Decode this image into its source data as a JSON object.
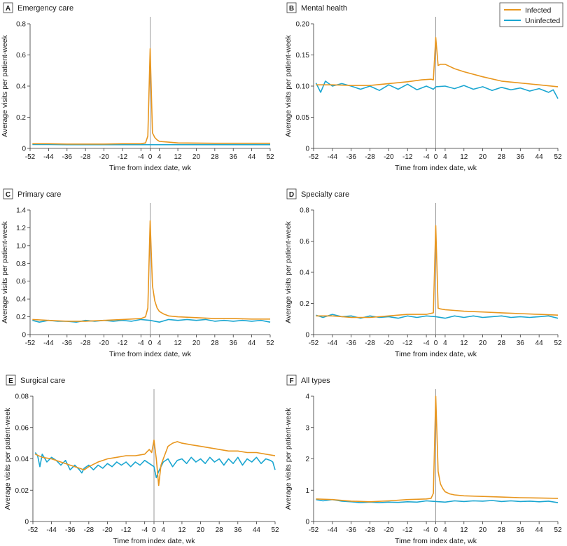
{
  "legend": {
    "infected_label": "Infected",
    "uninfected_label": "Uninfected",
    "position": "top-right of panel B"
  },
  "colors": {
    "infected": "#E8961E",
    "uninfected": "#1AA6D1",
    "index_line": "#9a9a9a",
    "axis": "#333333"
  },
  "chart_data": [
    {
      "type": "line",
      "panel_letter": "A",
      "title": "Emergency care",
      "xlabel": "Time from index date, wk",
      "ylabel": "Average visits per patient-week",
      "xlim": [
        -52,
        52
      ],
      "ylim": [
        0,
        0.8
      ],
      "xticks": [
        -52,
        -44,
        -36,
        -28,
        -20,
        -12,
        -4,
        0,
        4,
        12,
        20,
        28,
        36,
        44,
        52
      ],
      "yticks": [
        "0",
        "0.2",
        "0.4",
        "0.6",
        "0.8"
      ],
      "series": [
        {
          "name": "Infected",
          "x": [
            -51,
            -44,
            -36,
            -28,
            -20,
            -12,
            -4,
            -2,
            -1,
            0,
            1,
            2,
            3,
            4,
            8,
            12,
            20,
            28,
            36,
            44,
            52
          ],
          "y": [
            0.03,
            0.03,
            0.028,
            0.028,
            0.028,
            0.03,
            0.03,
            0.035,
            0.08,
            0.64,
            0.1,
            0.07,
            0.055,
            0.045,
            0.04,
            0.035,
            0.034,
            0.033,
            0.033,
            0.033,
            0.033
          ]
        },
        {
          "name": "Uninfected",
          "x": [
            -51,
            -44,
            -36,
            -28,
            -20,
            -12,
            -4,
            0,
            4,
            12,
            20,
            28,
            36,
            44,
            52
          ],
          "y": [
            0.025,
            0.025,
            0.024,
            0.024,
            0.024,
            0.024,
            0.024,
            0.024,
            0.024,
            0.024,
            0.024,
            0.024,
            0.024,
            0.024,
            0.024
          ]
        }
      ]
    },
    {
      "type": "line",
      "panel_letter": "B",
      "title": "Mental health",
      "xlabel": "Time from index date, wk",
      "ylabel": "Average visits per patient-week",
      "xlim": [
        -52,
        52
      ],
      "ylim": [
        0,
        0.2
      ],
      "xticks": [
        -52,
        -44,
        -36,
        -28,
        -20,
        -12,
        -4,
        0,
        4,
        12,
        20,
        28,
        36,
        44,
        52
      ],
      "yticks": [
        "0",
        "0.05",
        "0.10",
        "0.15",
        "0.20"
      ],
      "series": [
        {
          "name": "Infected",
          "x": [
            -51,
            -44,
            -36,
            -28,
            -20,
            -12,
            -6,
            -2,
            -1,
            0,
            1,
            2,
            4,
            8,
            12,
            20,
            28,
            36,
            44,
            52
          ],
          "y": [
            0.102,
            0.102,
            0.101,
            0.101,
            0.104,
            0.107,
            0.11,
            0.111,
            0.11,
            0.178,
            0.133,
            0.135,
            0.135,
            0.128,
            0.123,
            0.115,
            0.108,
            0.105,
            0.102,
            0.099
          ]
        },
        {
          "name": "Uninfected",
          "x": [
            -51,
            -49,
            -47,
            -44,
            -40,
            -36,
            -32,
            -28,
            -24,
            -20,
            -16,
            -12,
            -8,
            -4,
            -1,
            0,
            4,
            8,
            12,
            16,
            20,
            24,
            28,
            32,
            36,
            40,
            44,
            48,
            50,
            52
          ],
          "y": [
            0.105,
            0.09,
            0.108,
            0.1,
            0.104,
            0.1,
            0.095,
            0.1,
            0.093,
            0.102,
            0.095,
            0.103,
            0.094,
            0.1,
            0.095,
            0.099,
            0.1,
            0.096,
            0.101,
            0.095,
            0.099,
            0.093,
            0.098,
            0.094,
            0.097,
            0.092,
            0.096,
            0.09,
            0.094,
            0.08
          ]
        }
      ]
    },
    {
      "type": "line",
      "panel_letter": "C",
      "title": "Primary care",
      "xlabel": "Time from index date, wk",
      "ylabel": "Average visits per patient-week",
      "xlim": [
        -52,
        52
      ],
      "ylim": [
        0,
        1.4
      ],
      "xticks": [
        -52,
        -44,
        -36,
        -28,
        -20,
        -12,
        -4,
        0,
        4,
        12,
        20,
        28,
        36,
        44,
        52
      ],
      "yticks": [
        "0",
        "0.2",
        "0.4",
        "0.6",
        "0.8",
        "1.0",
        "1.2",
        "1.4"
      ],
      "series": [
        {
          "name": "Infected",
          "x": [
            -51,
            -44,
            -36,
            -28,
            -20,
            -12,
            -4,
            -2,
            -1,
            0,
            1,
            2,
            3,
            4,
            6,
            8,
            12,
            20,
            28,
            36,
            44,
            52
          ],
          "y": [
            0.17,
            0.16,
            0.15,
            0.15,
            0.16,
            0.17,
            0.18,
            0.2,
            0.3,
            1.28,
            0.55,
            0.38,
            0.3,
            0.26,
            0.23,
            0.21,
            0.2,
            0.19,
            0.18,
            0.18,
            0.175,
            0.175
          ]
        },
        {
          "name": "Uninfected",
          "x": [
            -51,
            -48,
            -44,
            -40,
            -36,
            -32,
            -28,
            -24,
            -20,
            -16,
            -12,
            -8,
            -4,
            0,
            4,
            8,
            12,
            16,
            20,
            24,
            28,
            32,
            36,
            40,
            44,
            48,
            52
          ],
          "y": [
            0.16,
            0.14,
            0.16,
            0.15,
            0.15,
            0.14,
            0.16,
            0.15,
            0.16,
            0.15,
            0.16,
            0.15,
            0.17,
            0.16,
            0.14,
            0.17,
            0.16,
            0.17,
            0.16,
            0.17,
            0.15,
            0.16,
            0.15,
            0.16,
            0.15,
            0.16,
            0.14
          ]
        }
      ]
    },
    {
      "type": "line",
      "panel_letter": "D",
      "title": "Specialty care",
      "xlabel": "Time from index date, wk",
      "ylabel": "Average visits per patient-week",
      "xlim": [
        -52,
        52
      ],
      "ylim": [
        0,
        0.8
      ],
      "xticks": [
        -52,
        -44,
        -36,
        -28,
        -20,
        -12,
        -4,
        0,
        4,
        12,
        20,
        28,
        36,
        44,
        52
      ],
      "yticks": [
        "0",
        "0.2",
        "0.4",
        "0.6",
        "0.8"
      ],
      "series": [
        {
          "name": "Infected",
          "x": [
            -51,
            -44,
            -36,
            -28,
            -20,
            -12,
            -4,
            -1,
            0,
            1,
            2,
            4,
            8,
            12,
            20,
            28,
            36,
            44,
            52
          ],
          "y": [
            0.12,
            0.12,
            0.11,
            0.11,
            0.12,
            0.13,
            0.13,
            0.14,
            0.7,
            0.17,
            0.165,
            0.16,
            0.155,
            0.15,
            0.145,
            0.14,
            0.135,
            0.13,
            0.125
          ]
        },
        {
          "name": "Uninfected",
          "x": [
            -51,
            -48,
            -44,
            -40,
            -36,
            -32,
            -28,
            -24,
            -20,
            -16,
            -12,
            -8,
            -4,
            0,
            4,
            8,
            12,
            16,
            20,
            24,
            28,
            32,
            36,
            40,
            44,
            48,
            52
          ],
          "y": [
            0.125,
            0.11,
            0.13,
            0.115,
            0.12,
            0.105,
            0.12,
            0.11,
            0.115,
            0.105,
            0.12,
            0.11,
            0.12,
            0.115,
            0.105,
            0.12,
            0.11,
            0.12,
            0.11,
            0.115,
            0.12,
            0.11,
            0.115,
            0.11,
            0.115,
            0.12,
            0.105
          ]
        }
      ]
    },
    {
      "type": "line",
      "panel_letter": "E",
      "title": "Surgical care",
      "xlabel": "Time from index date, wk",
      "ylabel": "Average visits per patient-week",
      "xlim": [
        -52,
        52
      ],
      "ylim": [
        0,
        0.08
      ],
      "xticks": [
        -52,
        -44,
        -36,
        -28,
        -20,
        -12,
        -4,
        0,
        4,
        12,
        20,
        28,
        36,
        44,
        52
      ],
      "yticks": [
        "0",
        "0.02",
        "0.04",
        "0.06",
        "0.08"
      ],
      "series": [
        {
          "name": "Infected",
          "x": [
            -51,
            -48,
            -44,
            -40,
            -36,
            -32,
            -30,
            -28,
            -24,
            -20,
            -16,
            -12,
            -8,
            -4,
            -2,
            -1,
            0,
            1,
            2,
            3,
            4,
            6,
            8,
            10,
            12,
            16,
            20,
            24,
            28,
            32,
            36,
            40,
            44,
            48,
            52
          ],
          "y": [
            0.043,
            0.041,
            0.04,
            0.038,
            0.036,
            0.034,
            0.033,
            0.035,
            0.038,
            0.04,
            0.041,
            0.042,
            0.042,
            0.043,
            0.046,
            0.044,
            0.052,
            0.04,
            0.023,
            0.036,
            0.04,
            0.048,
            0.05,
            0.051,
            0.05,
            0.049,
            0.048,
            0.047,
            0.046,
            0.045,
            0.045,
            0.044,
            0.044,
            0.043,
            0.042
          ]
        },
        {
          "name": "Uninfected",
          "x": [
            -51,
            -50,
            -49,
            -48,
            -46,
            -44,
            -42,
            -40,
            -38,
            -36,
            -34,
            -32,
            -31,
            -30,
            -28,
            -26,
            -24,
            -22,
            -20,
            -18,
            -16,
            -14,
            -12,
            -10,
            -8,
            -6,
            -4,
            -2,
            0,
            1,
            2,
            4,
            6,
            8,
            10,
            12,
            14,
            16,
            18,
            20,
            22,
            24,
            26,
            28,
            30,
            32,
            34,
            36,
            38,
            40,
            42,
            44,
            46,
            48,
            50,
            51,
            52
          ],
          "y": [
            0.044,
            0.042,
            0.035,
            0.043,
            0.038,
            0.041,
            0.039,
            0.036,
            0.039,
            0.033,
            0.036,
            0.033,
            0.031,
            0.034,
            0.036,
            0.033,
            0.036,
            0.034,
            0.037,
            0.035,
            0.038,
            0.036,
            0.038,
            0.035,
            0.038,
            0.036,
            0.039,
            0.037,
            0.035,
            0.028,
            0.032,
            0.038,
            0.04,
            0.035,
            0.039,
            0.04,
            0.037,
            0.041,
            0.038,
            0.04,
            0.037,
            0.041,
            0.038,
            0.04,
            0.036,
            0.04,
            0.037,
            0.041,
            0.036,
            0.04,
            0.038,
            0.041,
            0.037,
            0.04,
            0.039,
            0.038,
            0.033
          ]
        }
      ]
    },
    {
      "type": "line",
      "panel_letter": "F",
      "title": "All types",
      "xlabel": "Time from index date, wk",
      "ylabel": "Average visits per patient-week",
      "xlim": [
        -52,
        52
      ],
      "ylim": [
        0,
        4
      ],
      "xticks": [
        -52,
        -44,
        -36,
        -28,
        -20,
        -12,
        -4,
        0,
        4,
        12,
        20,
        28,
        36,
        44,
        52
      ],
      "yticks": [
        "0",
        "1",
        "2",
        "3",
        "4"
      ],
      "series": [
        {
          "name": "Infected",
          "x": [
            -51,
            -44,
            -36,
            -28,
            -20,
            -12,
            -4,
            -2,
            -1,
            0,
            1,
            2,
            3,
            4,
            6,
            8,
            12,
            20,
            28,
            36,
            44,
            52
          ],
          "y": [
            0.72,
            0.7,
            0.65,
            0.63,
            0.66,
            0.7,
            0.72,
            0.74,
            0.9,
            4.0,
            1.6,
            1.2,
            1.05,
            0.95,
            0.88,
            0.85,
            0.82,
            0.8,
            0.78,
            0.76,
            0.75,
            0.74
          ]
        },
        {
          "name": "Uninfected",
          "x": [
            -51,
            -48,
            -44,
            -40,
            -36,
            -32,
            -28,
            -24,
            -20,
            -16,
            -12,
            -8,
            -4,
            0,
            4,
            8,
            12,
            16,
            20,
            24,
            28,
            32,
            36,
            40,
            44,
            48,
            52
          ],
          "y": [
            0.7,
            0.66,
            0.7,
            0.65,
            0.63,
            0.6,
            0.62,
            0.6,
            0.62,
            0.61,
            0.63,
            0.62,
            0.66,
            0.64,
            0.62,
            0.66,
            0.64,
            0.66,
            0.65,
            0.67,
            0.64,
            0.66,
            0.64,
            0.65,
            0.63,
            0.65,
            0.6
          ]
        }
      ]
    }
  ]
}
